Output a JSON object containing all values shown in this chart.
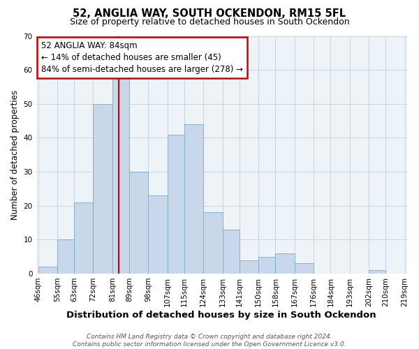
{
  "title": "52, ANGLIA WAY, SOUTH OCKENDON, RM15 5FL",
  "subtitle": "Size of property relative to detached houses in South Ockendon",
  "xlabel": "Distribution of detached houses by size in South Ockendon",
  "ylabel": "Number of detached properties",
  "bar_color": "#c8d8ea",
  "bar_edge_color": "#7aaac8",
  "grid_color": "#c5d5e5",
  "background_color": "#eef3f8",
  "annotation_box_color": "#cc0000",
  "vline_color": "#cc0000",
  "vline_x": 84,
  "annotation_text": "52 ANGLIA WAY: 84sqm\n← 14% of detached houses are smaller (45)\n84% of semi-detached houses are larger (278) →",
  "bin_edges": [
    46,
    55,
    63,
    72,
    81,
    89,
    98,
    107,
    115,
    124,
    133,
    141,
    150,
    158,
    167,
    176,
    184,
    193,
    202,
    210,
    219
  ],
  "bin_heights": [
    2,
    10,
    21,
    50,
    58,
    30,
    23,
    41,
    44,
    18,
    13,
    4,
    5,
    6,
    3,
    0,
    0,
    0,
    1,
    0
  ],
  "tick_labels": [
    "46sqm",
    "55sqm",
    "63sqm",
    "72sqm",
    "81sqm",
    "89sqm",
    "98sqm",
    "107sqm",
    "115sqm",
    "124sqm",
    "133sqm",
    "141sqm",
    "150sqm",
    "158sqm",
    "167sqm",
    "176sqm",
    "184sqm",
    "193sqm",
    "202sqm",
    "210sqm",
    "219sqm"
  ],
  "ylim": [
    0,
    70
  ],
  "yticks": [
    0,
    10,
    20,
    30,
    40,
    50,
    60,
    70
  ],
  "footer_text": "Contains HM Land Registry data © Crown copyright and database right 2024.\nContains public sector information licensed under the Open Government Licence v3.0.",
  "title_fontsize": 10.5,
  "subtitle_fontsize": 9,
  "xlabel_fontsize": 9.5,
  "ylabel_fontsize": 8.5,
  "tick_fontsize": 7.5,
  "annotation_fontsize": 8.5,
  "footer_fontsize": 6.5
}
